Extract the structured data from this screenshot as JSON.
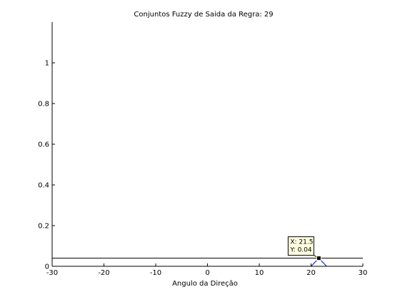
{
  "chart_data": {
    "type": "line",
    "title": "Conjuntos Fuzzy de Saida da Regra: 29",
    "xlabel": "Angulo da Direção",
    "ylabel": "",
    "xlim": [
      -30,
      30
    ],
    "ylim": [
      0,
      1.2
    ],
    "x_ticks": [
      -30,
      -20,
      -10,
      0,
      10,
      20,
      30
    ],
    "y_ticks": [
      0,
      0.2,
      0.4,
      0.6,
      0.8,
      1
    ],
    "x_tick_labels": [
      "-30",
      "-20",
      "-10",
      "0",
      "10",
      "20",
      "30"
    ],
    "y_tick_labels": [
      "0",
      "0.2",
      "0.4",
      "0.6",
      "0.8",
      "1"
    ],
    "grid": false,
    "legend": "none",
    "series": [
      {
        "color": "#0000ff",
        "x": [
          -30,
          20,
          21.5,
          23,
          30
        ],
        "y": [
          0,
          0,
          0.04,
          0,
          0
        ]
      },
      {
        "color": "#000000",
        "x": [
          -30,
          30
        ],
        "y": [
          0.04,
          0.04
        ]
      }
    ],
    "datatip": {
      "x": 21.5,
      "y": 0.04,
      "x_text": "X: 21.5",
      "y_text": "Y: 0.04",
      "background": "#ffffe0"
    }
  }
}
